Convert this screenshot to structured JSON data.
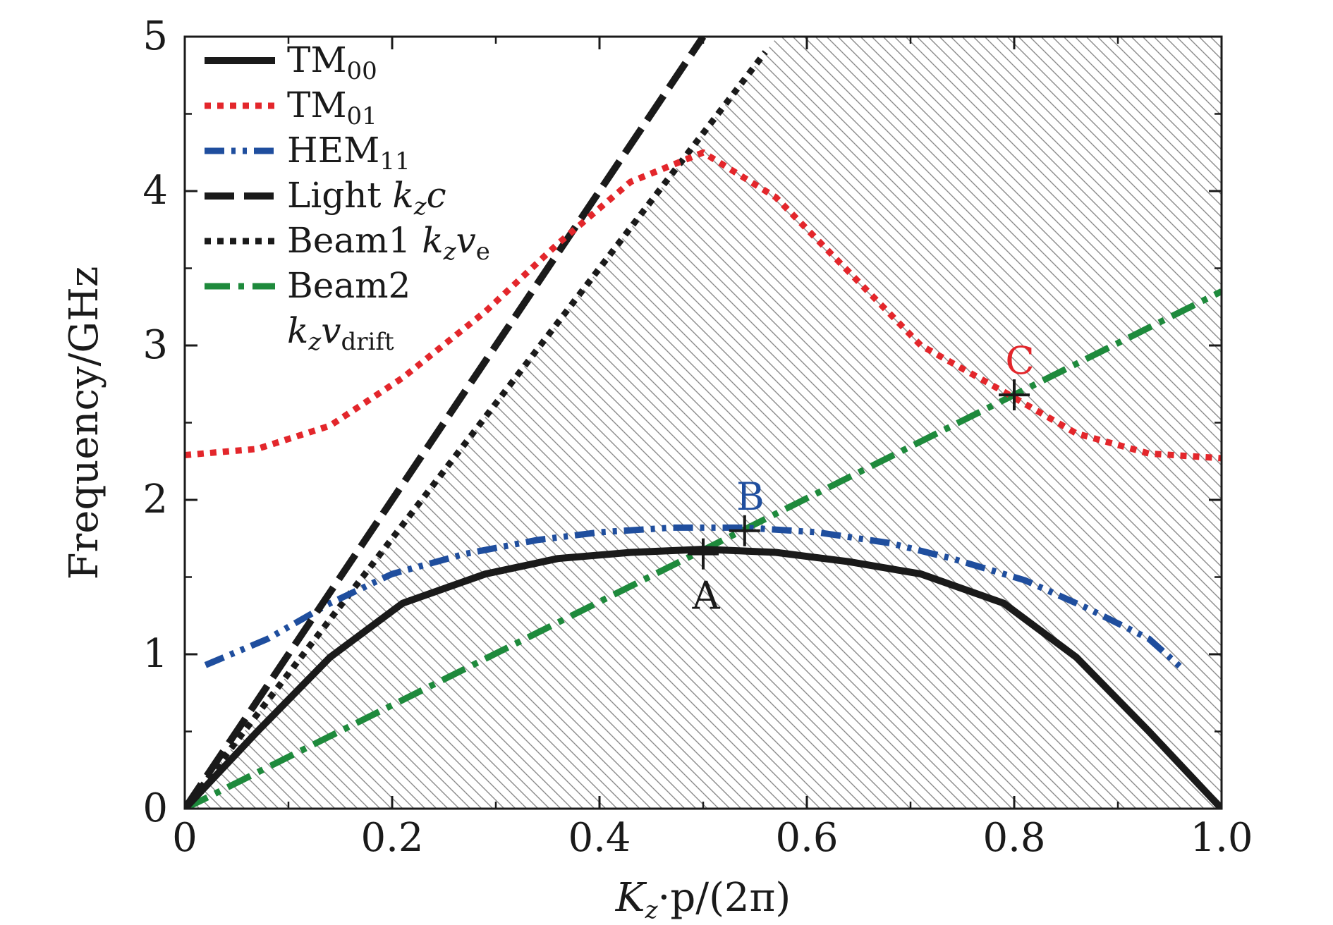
{
  "chart_data": {
    "type": "line",
    "xlabel": "K",
    "xlabel_parts": {
      "sym": "K",
      "sub": "z",
      "rest": "·p/(2π)"
    },
    "ylabel": "Frequency/GHz",
    "xlim": [
      0,
      1.0
    ],
    "ylim": [
      0,
      5
    ],
    "xticks": [
      "0",
      "0.2",
      "0.4",
      "0.6",
      "0.8",
      "1.0"
    ],
    "xtick_values": [
      0,
      0.2,
      0.4,
      0.6,
      0.8,
      1.0
    ],
    "yticks": [
      "0",
      "1",
      "2",
      "3",
      "4",
      "5"
    ],
    "ytick_values": [
      0,
      1,
      2,
      3,
      4,
      5
    ],
    "shaded_region": "hatched area to the right of Beam1 line",
    "legend_position": "top-left",
    "series": [
      {
        "name": "TM",
        "sub": "00",
        "color": "#1a1a1a",
        "style": "solid",
        "x": [
          0,
          0.07,
          0.14,
          0.21,
          0.29,
          0.36,
          0.43,
          0.5,
          0.57,
          0.64,
          0.71,
          0.79,
          0.86,
          0.93,
          1.0
        ],
        "y": [
          0,
          0.5,
          0.98,
          1.33,
          1.52,
          1.62,
          1.66,
          1.68,
          1.66,
          1.6,
          1.52,
          1.33,
          0.98,
          0.5,
          0
        ]
      },
      {
        "name": "TM",
        "sub": "01",
        "color": "#e3262b",
        "style": "dotted",
        "x": [
          0,
          0.07,
          0.14,
          0.21,
          0.29,
          0.36,
          0.43,
          0.5,
          0.57,
          0.64,
          0.71,
          0.79,
          0.86,
          0.93,
          1.0
        ],
        "y": [
          2.29,
          2.33,
          2.48,
          2.79,
          3.22,
          3.66,
          4.06,
          4.25,
          3.96,
          3.48,
          3.0,
          2.7,
          2.43,
          2.3,
          2.27
        ]
      },
      {
        "name": "HEM",
        "sub": "11",
        "color": "#1f4e9e",
        "style": "dashdotdot",
        "x": [
          0.02,
          0.08,
          0.14,
          0.2,
          0.27,
          0.34,
          0.4,
          0.47,
          0.54,
          0.61,
          0.68,
          0.74,
          0.81,
          0.87,
          0.93,
          0.96
        ],
        "y": [
          0.93,
          1.1,
          1.33,
          1.52,
          1.65,
          1.74,
          1.79,
          1.82,
          1.82,
          1.79,
          1.72,
          1.62,
          1.48,
          1.3,
          1.1,
          0.92
        ]
      },
      {
        "name": "Light",
        "math": "kzc",
        "color": "#1a1a1a",
        "style": "longdash",
        "x": [
          0,
          0.5
        ],
        "y": [
          0,
          5.0
        ]
      },
      {
        "name": "Beam1",
        "math": "kzve",
        "color": "#1a1a1a",
        "style": "dotted",
        "x": [
          0,
          0.56
        ],
        "y": [
          0,
          4.9
        ]
      },
      {
        "name": "Beam2",
        "math": "kzvdrift",
        "color": "#1e8a3c",
        "style": "dashdot",
        "x": [
          0,
          1.0
        ],
        "y": [
          0,
          3.35
        ]
      }
    ],
    "legend": [
      {
        "label": "TM",
        "sub": "00",
        "color": "#1a1a1a",
        "style": "solid"
      },
      {
        "label": "TM",
        "sub": "01",
        "color": "#e3262b",
        "style": "dotted"
      },
      {
        "label": "HEM",
        "sub": "11",
        "color": "#1f4e9e",
        "style": "dashdotdot"
      },
      {
        "label": "Light ",
        "k": "k",
        "ksub": "z",
        "v": "c",
        "vsub": "",
        "color": "#1a1a1a",
        "style": "longdash"
      },
      {
        "label": "Beam1 ",
        "k": "k",
        "ksub": "z",
        "v": "v",
        "vsub": "e",
        "color": "#1a1a1a",
        "style": "dotted"
      },
      {
        "label": "Beam2",
        "k": "k",
        "ksub": "z",
        "v": "v",
        "vsub": "drift",
        "color": "#1e8a3c",
        "style": "dashdot"
      }
    ],
    "annotations": [
      {
        "label": "A",
        "x": 0.5,
        "y": 1.65,
        "color": "#1a1a1a",
        "label_pos": "below"
      },
      {
        "label": "B",
        "x": 0.54,
        "y": 1.8,
        "color": "#1f4e9e",
        "label_pos": "above"
      },
      {
        "label": "C",
        "x": 0.8,
        "y": 2.68,
        "color": "#e3262b",
        "label_pos": "above"
      }
    ]
  }
}
